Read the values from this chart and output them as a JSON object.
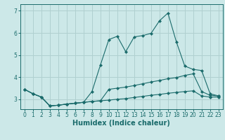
{
  "xlabel": "Humidex (Indice chaleur)",
  "xlim": [
    -0.5,
    23.5
  ],
  "ylim": [
    2.55,
    7.3
  ],
  "yticks": [
    3,
    4,
    5,
    6,
    7
  ],
  "xticks": [
    0,
    1,
    2,
    3,
    4,
    5,
    6,
    7,
    8,
    9,
    10,
    11,
    12,
    13,
    14,
    15,
    16,
    17,
    18,
    19,
    20,
    21,
    22,
    23
  ],
  "bg_color": "#cce8e8",
  "grid_color": "#b0d0d0",
  "line_color": "#1a6b6b",
  "line_bottom_y": [
    3.45,
    3.25,
    3.1,
    2.7,
    2.73,
    2.78,
    2.82,
    2.86,
    2.9,
    2.93,
    2.96,
    3.0,
    3.03,
    3.08,
    3.13,
    3.18,
    3.22,
    3.27,
    3.31,
    3.35,
    3.38,
    3.15,
    3.1,
    3.1
  ],
  "line_mid_y": [
    3.45,
    3.25,
    3.1,
    2.7,
    2.73,
    2.78,
    2.82,
    2.86,
    2.9,
    2.93,
    3.45,
    3.5,
    3.55,
    3.62,
    3.7,
    3.78,
    3.85,
    3.93,
    3.98,
    4.08,
    4.15,
    3.35,
    3.18,
    3.15
  ],
  "line_top_y": [
    3.45,
    3.25,
    3.1,
    2.7,
    2.73,
    2.78,
    2.82,
    2.86,
    3.35,
    4.55,
    5.7,
    5.85,
    5.15,
    5.82,
    5.88,
    5.98,
    6.55,
    6.9,
    5.6,
    4.5,
    4.35,
    4.3,
    3.25,
    3.15
  ],
  "xlabel_fontsize": 7,
  "tick_fontsize": 5.5
}
